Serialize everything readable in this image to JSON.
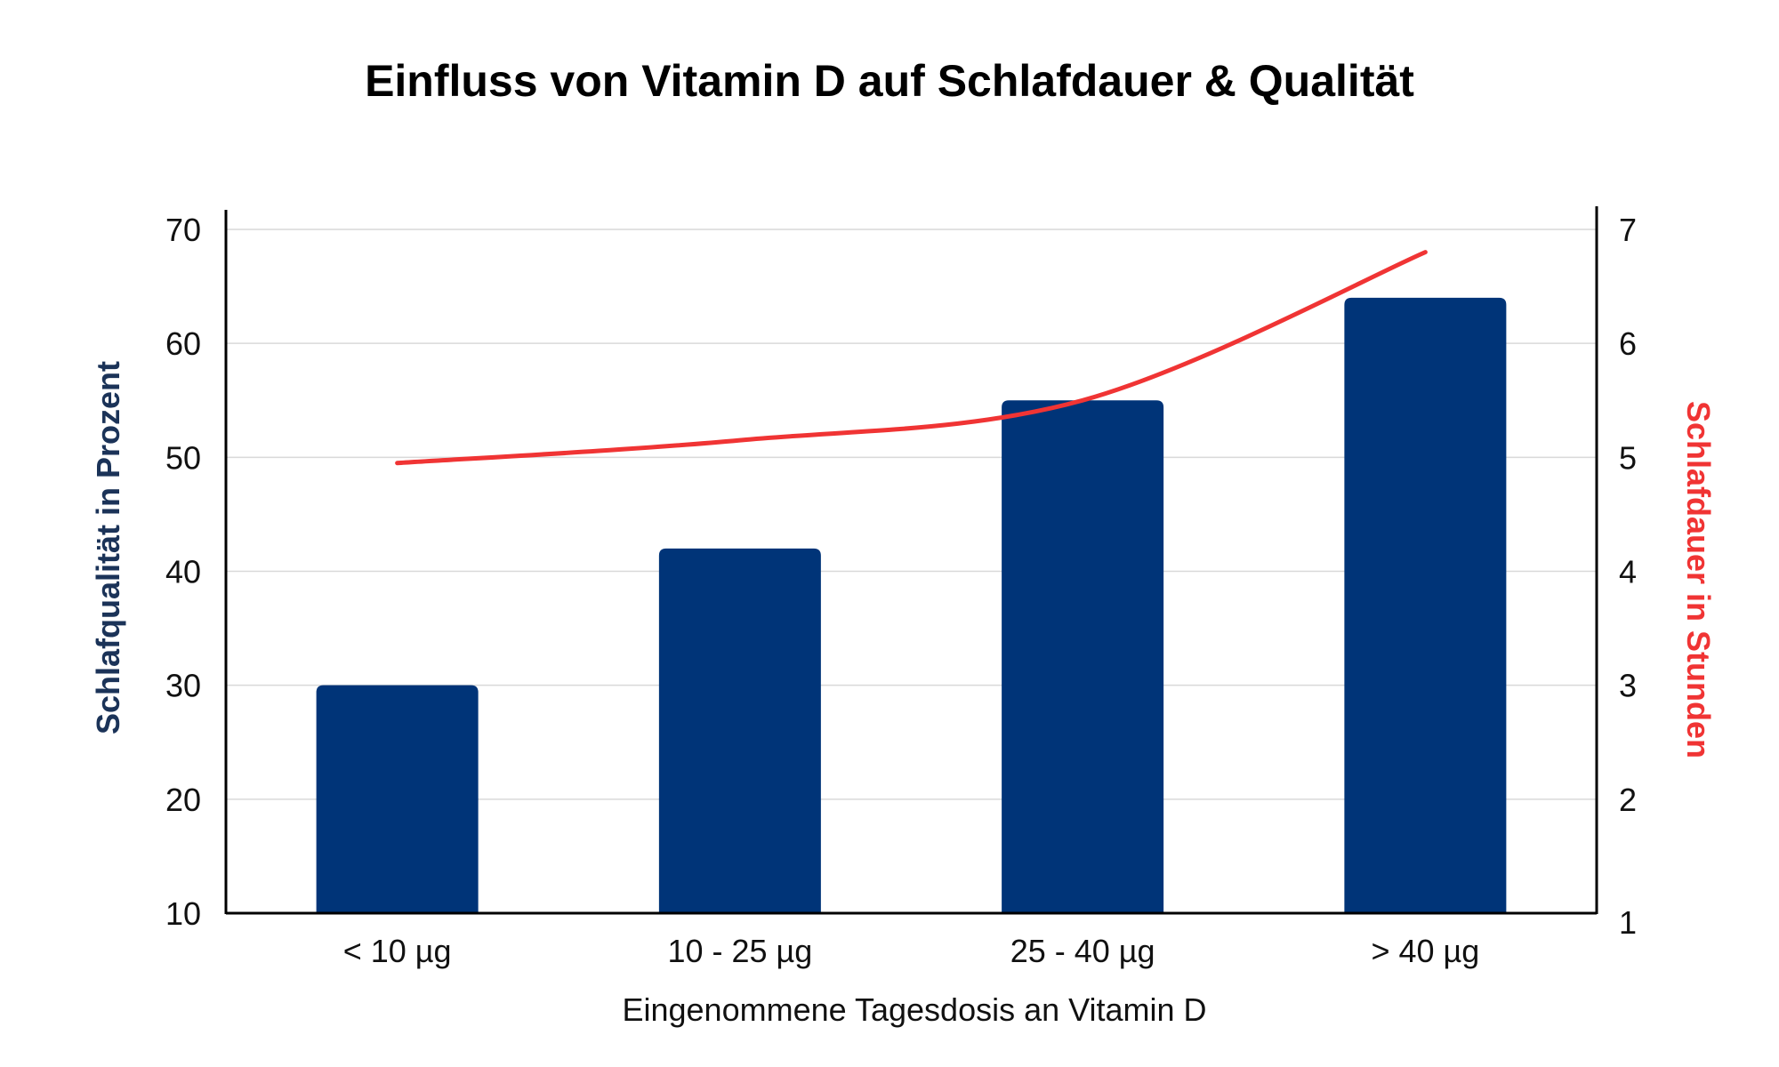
{
  "chart_data": {
    "type": "bar",
    "title": "Einfluss von Vitamin D auf Schlafdauer & Qualität",
    "xlabel": "Eingenommene Tagesdosis an Vitamin D",
    "ylabel": "Schlafqualität in Prozent",
    "y2label": "Schlafdauer in Stunden",
    "categories": [
      "< 10 µg",
      "10 - 25 µg",
      "25 - 40 µg",
      "> 40 µg"
    ],
    "series": [
      {
        "name": "Schlafqualität in Prozent",
        "type": "bar",
        "axis": "left",
        "values": [
          30,
          42,
          55,
          64
        ]
      },
      {
        "name": "Schlafdauer in Stunden",
        "type": "line",
        "axis": "right",
        "smooth": true,
        "values": [
          4.95,
          5.15,
          5.5,
          6.8
        ]
      }
    ],
    "ylim": [
      10,
      70
    ],
    "y2lim": [
      1,
      7
    ],
    "yticks": [
      "10",
      "20",
      "30",
      "40",
      "50",
      "60",
      "70"
    ],
    "y2ticks": [
      "1",
      "2",
      "3",
      "4",
      "5",
      "6",
      "7"
    ],
    "grid": true,
    "colors": {
      "bar": "#003478",
      "line": "#f03434",
      "y_label": "#1b3358",
      "y2_label": "#f03434"
    }
  }
}
